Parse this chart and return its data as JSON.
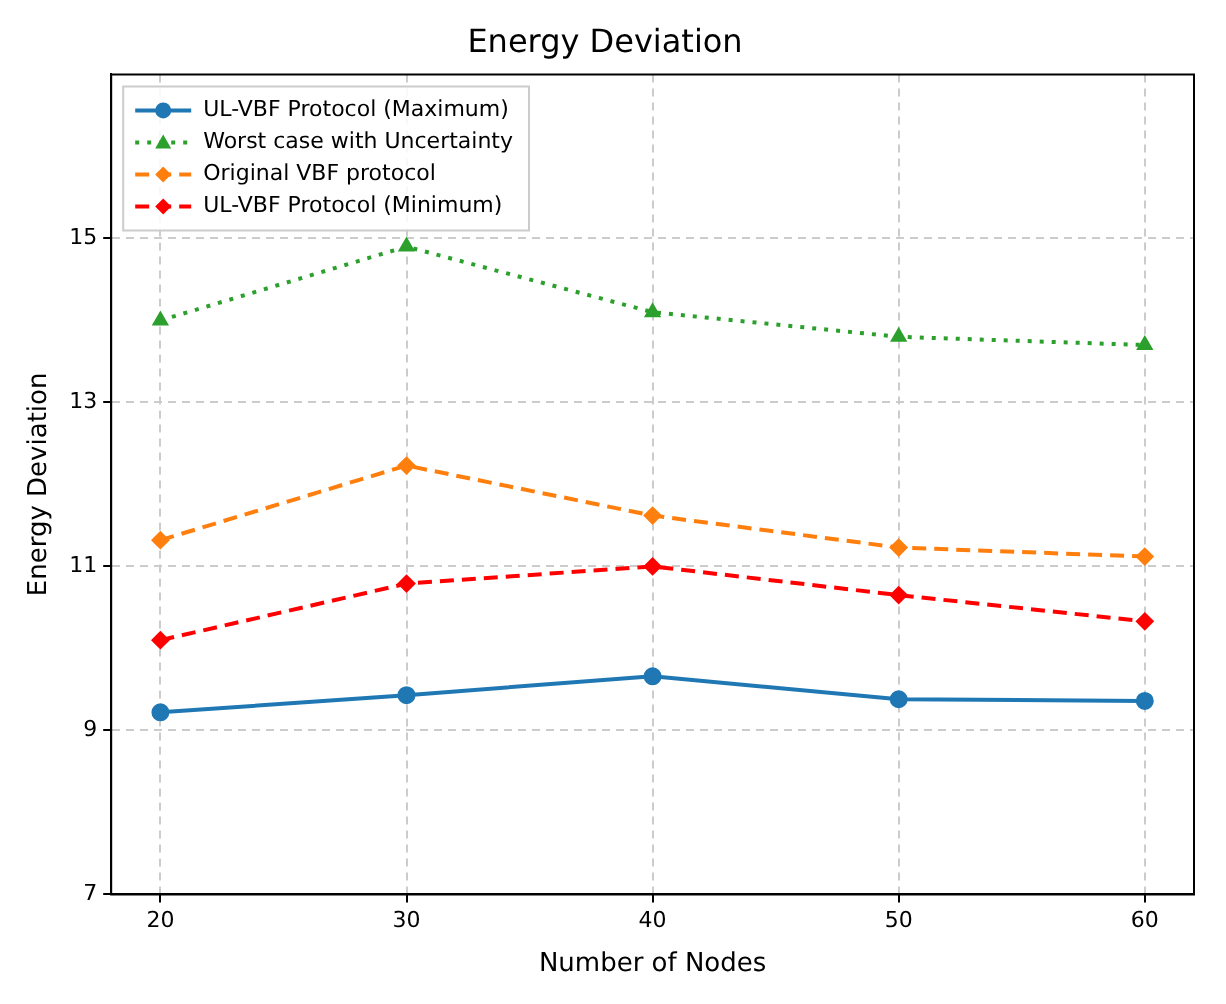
{
  "chart_data": {
    "type": "line",
    "title": "Energy Deviation",
    "xlabel": "Number of Nodes",
    "ylabel": "Energy Deviation",
    "x": [
      20,
      30,
      40,
      50,
      60
    ],
    "series": [
      {
        "name": "UL-VBF Protocol (Maximum)",
        "color": "#1f77b4",
        "values": [
          9.22,
          9.43,
          9.66,
          9.38,
          9.36
        ],
        "marker": "circle",
        "line_style": "solid"
      },
      {
        "name": "Worst case with Uncertainty",
        "color": "#2ca02c",
        "values": [
          14.0,
          14.9,
          14.1,
          13.8,
          13.7
        ],
        "marker": "triangle",
        "line_style": "dotted"
      },
      {
        "name": "Original VBF protocol",
        "color": "#ff7f0e",
        "values": [
          11.32,
          12.23,
          11.62,
          11.23,
          11.12
        ],
        "marker": "diamond",
        "line_style": "dashed"
      },
      {
        "name": "UL-VBF Protocol (Minimum)",
        "color": "#ff0000",
        "values": [
          10.1,
          10.79,
          11.0,
          10.65,
          10.33
        ],
        "marker": "diamond",
        "line_style": "dashed"
      }
    ],
    "xlim": [
      18,
      62
    ],
    "xticks": [
      20,
      30,
      40,
      50,
      60
    ],
    "ylim": [
      7,
      17
    ],
    "yticks": [
      7,
      9,
      11,
      13,
      15
    ],
    "grid": true,
    "legend": "top left"
  }
}
